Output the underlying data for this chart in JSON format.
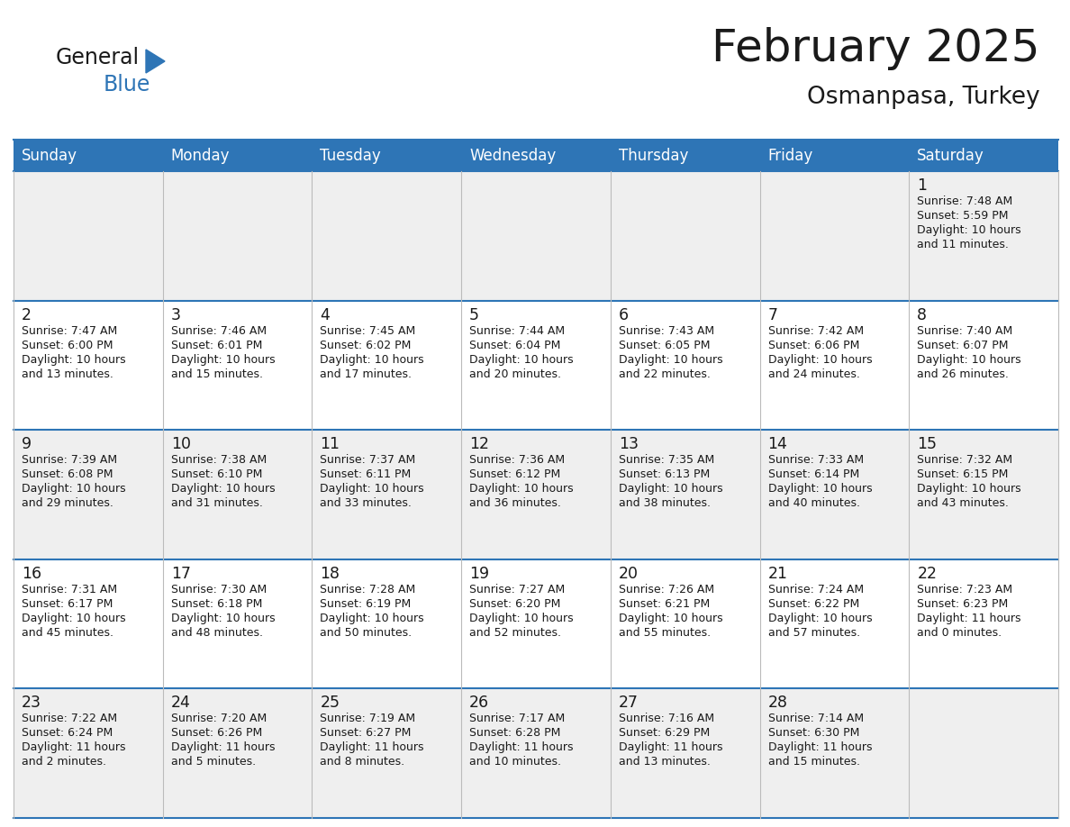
{
  "title": "February 2025",
  "subtitle": "Osmanpasa, Turkey",
  "header_color": "#2E75B6",
  "header_text_color": "#FFFFFF",
  "cell_bg_odd": "#EFEFEF",
  "cell_bg_even": "#FFFFFF",
  "border_color_blue": "#2E75B6",
  "border_color_light": "#BBBBBB",
  "text_color": "#1A1A1A",
  "day_names": [
    "Sunday",
    "Monday",
    "Tuesday",
    "Wednesday",
    "Thursday",
    "Friday",
    "Saturday"
  ],
  "days": [
    {
      "day": 1,
      "col": 6,
      "row": 0,
      "sunrise": "7:48 AM",
      "sunset": "5:59 PM",
      "daylight_h": "10 hours",
      "daylight_m": "and 11 minutes."
    },
    {
      "day": 2,
      "col": 0,
      "row": 1,
      "sunrise": "7:47 AM",
      "sunset": "6:00 PM",
      "daylight_h": "10 hours",
      "daylight_m": "and 13 minutes."
    },
    {
      "day": 3,
      "col": 1,
      "row": 1,
      "sunrise": "7:46 AM",
      "sunset": "6:01 PM",
      "daylight_h": "10 hours",
      "daylight_m": "and 15 minutes."
    },
    {
      "day": 4,
      "col": 2,
      "row": 1,
      "sunrise": "7:45 AM",
      "sunset": "6:02 PM",
      "daylight_h": "10 hours",
      "daylight_m": "and 17 minutes."
    },
    {
      "day": 5,
      "col": 3,
      "row": 1,
      "sunrise": "7:44 AM",
      "sunset": "6:04 PM",
      "daylight_h": "10 hours",
      "daylight_m": "and 20 minutes."
    },
    {
      "day": 6,
      "col": 4,
      "row": 1,
      "sunrise": "7:43 AM",
      "sunset": "6:05 PM",
      "daylight_h": "10 hours",
      "daylight_m": "and 22 minutes."
    },
    {
      "day": 7,
      "col": 5,
      "row": 1,
      "sunrise": "7:42 AM",
      "sunset": "6:06 PM",
      "daylight_h": "10 hours",
      "daylight_m": "and 24 minutes."
    },
    {
      "day": 8,
      "col": 6,
      "row": 1,
      "sunrise": "7:40 AM",
      "sunset": "6:07 PM",
      "daylight_h": "10 hours",
      "daylight_m": "and 26 minutes."
    },
    {
      "day": 9,
      "col": 0,
      "row": 2,
      "sunrise": "7:39 AM",
      "sunset": "6:08 PM",
      "daylight_h": "10 hours",
      "daylight_m": "and 29 minutes."
    },
    {
      "day": 10,
      "col": 1,
      "row": 2,
      "sunrise": "7:38 AM",
      "sunset": "6:10 PM",
      "daylight_h": "10 hours",
      "daylight_m": "and 31 minutes."
    },
    {
      "day": 11,
      "col": 2,
      "row": 2,
      "sunrise": "7:37 AM",
      "sunset": "6:11 PM",
      "daylight_h": "10 hours",
      "daylight_m": "and 33 minutes."
    },
    {
      "day": 12,
      "col": 3,
      "row": 2,
      "sunrise": "7:36 AM",
      "sunset": "6:12 PM",
      "daylight_h": "10 hours",
      "daylight_m": "and 36 minutes."
    },
    {
      "day": 13,
      "col": 4,
      "row": 2,
      "sunrise": "7:35 AM",
      "sunset": "6:13 PM",
      "daylight_h": "10 hours",
      "daylight_m": "and 38 minutes."
    },
    {
      "day": 14,
      "col": 5,
      "row": 2,
      "sunrise": "7:33 AM",
      "sunset": "6:14 PM",
      "daylight_h": "10 hours",
      "daylight_m": "and 40 minutes."
    },
    {
      "day": 15,
      "col": 6,
      "row": 2,
      "sunrise": "7:32 AM",
      "sunset": "6:15 PM",
      "daylight_h": "10 hours",
      "daylight_m": "and 43 minutes."
    },
    {
      "day": 16,
      "col": 0,
      "row": 3,
      "sunrise": "7:31 AM",
      "sunset": "6:17 PM",
      "daylight_h": "10 hours",
      "daylight_m": "and 45 minutes."
    },
    {
      "day": 17,
      "col": 1,
      "row": 3,
      "sunrise": "7:30 AM",
      "sunset": "6:18 PM",
      "daylight_h": "10 hours",
      "daylight_m": "and 48 minutes."
    },
    {
      "day": 18,
      "col": 2,
      "row": 3,
      "sunrise": "7:28 AM",
      "sunset": "6:19 PM",
      "daylight_h": "10 hours",
      "daylight_m": "and 50 minutes."
    },
    {
      "day": 19,
      "col": 3,
      "row": 3,
      "sunrise": "7:27 AM",
      "sunset": "6:20 PM",
      "daylight_h": "10 hours",
      "daylight_m": "and 52 minutes."
    },
    {
      "day": 20,
      "col": 4,
      "row": 3,
      "sunrise": "7:26 AM",
      "sunset": "6:21 PM",
      "daylight_h": "10 hours",
      "daylight_m": "and 55 minutes."
    },
    {
      "day": 21,
      "col": 5,
      "row": 3,
      "sunrise": "7:24 AM",
      "sunset": "6:22 PM",
      "daylight_h": "10 hours",
      "daylight_m": "and 57 minutes."
    },
    {
      "day": 22,
      "col": 6,
      "row": 3,
      "sunrise": "7:23 AM",
      "sunset": "6:23 PM",
      "daylight_h": "11 hours",
      "daylight_m": "and 0 minutes."
    },
    {
      "day": 23,
      "col": 0,
      "row": 4,
      "sunrise": "7:22 AM",
      "sunset": "6:24 PM",
      "daylight_h": "11 hours",
      "daylight_m": "and 2 minutes."
    },
    {
      "day": 24,
      "col": 1,
      "row": 4,
      "sunrise": "7:20 AM",
      "sunset": "6:26 PM",
      "daylight_h": "11 hours",
      "daylight_m": "and 5 minutes."
    },
    {
      "day": 25,
      "col": 2,
      "row": 4,
      "sunrise": "7:19 AM",
      "sunset": "6:27 PM",
      "daylight_h": "11 hours",
      "daylight_m": "and 8 minutes."
    },
    {
      "day": 26,
      "col": 3,
      "row": 4,
      "sunrise": "7:17 AM",
      "sunset": "6:28 PM",
      "daylight_h": "11 hours",
      "daylight_m": "and 10 minutes."
    },
    {
      "day": 27,
      "col": 4,
      "row": 4,
      "sunrise": "7:16 AM",
      "sunset": "6:29 PM",
      "daylight_h": "11 hours",
      "daylight_m": "and 13 minutes."
    },
    {
      "day": 28,
      "col": 5,
      "row": 4,
      "sunrise": "7:14 AM",
      "sunset": "6:30 PM",
      "daylight_h": "11 hours",
      "daylight_m": "and 15 minutes."
    }
  ]
}
